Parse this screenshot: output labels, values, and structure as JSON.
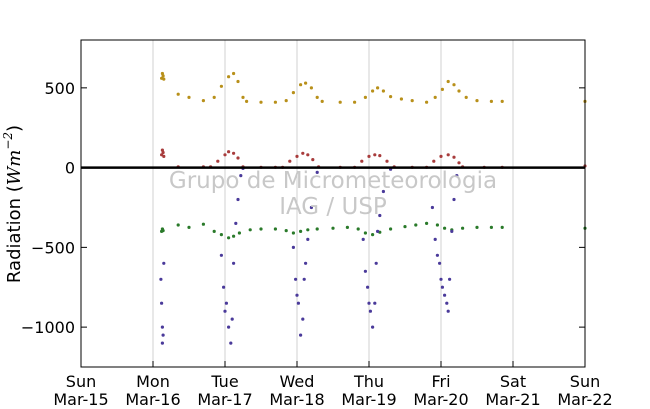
{
  "chart_data": {
    "type": "scatter",
    "title": "",
    "xlabel": "",
    "ylabel": "Radiation (Wm⁻²)",
    "ylabel_text": "Radiation (",
    "ylabel_unit": "Wm",
    "ylabel_exp": "−2",
    "ylabel_close": ")",
    "xlim": [
      0,
      7
    ],
    "ylim": [
      -1250,
      800
    ],
    "yticks": [
      500,
      0,
      -500,
      -1000
    ],
    "ytick_labels": [
      "500",
      "0",
      "−500",
      "−1000"
    ],
    "xtick_labels": [
      {
        "day": "Sun",
        "date": "Mar-15"
      },
      {
        "day": "Mon",
        "date": "Mar-16"
      },
      {
        "day": "Tue",
        "date": "Mar-17"
      },
      {
        "day": "Wed",
        "date": "Mar-18"
      },
      {
        "day": "Thu",
        "date": "Mar-19"
      },
      {
        "day": "Fri",
        "date": "Mar-20"
      },
      {
        "day": "Sat",
        "date": "Mar-21"
      },
      {
        "day": "Sun",
        "date": "Mar-22"
      }
    ],
    "grid": "vertical",
    "watermark": [
      "Grupo de Micrometeorologia",
      "IAG / USP"
    ],
    "series": [
      {
        "color": "#b8901a",
        "points": [
          [
            1.12,
            560
          ],
          [
            1.13,
            590
          ],
          [
            1.14,
            575
          ],
          [
            1.15,
            555
          ],
          [
            1.35,
            460
          ],
          [
            1.5,
            440
          ],
          [
            1.7,
            420
          ],
          [
            1.85,
            440
          ],
          [
            1.95,
            510
          ],
          [
            2.05,
            570
          ],
          [
            2.12,
            590
          ],
          [
            2.18,
            540
          ],
          [
            2.25,
            440
          ],
          [
            2.3,
            415
          ],
          [
            2.5,
            410
          ],
          [
            2.7,
            410
          ],
          [
            2.85,
            420
          ],
          [
            2.95,
            470
          ],
          [
            3.05,
            520
          ],
          [
            3.12,
            530
          ],
          [
            3.2,
            500
          ],
          [
            3.28,
            440
          ],
          [
            3.35,
            415
          ],
          [
            3.6,
            410
          ],
          [
            3.8,
            410
          ],
          [
            3.95,
            440
          ],
          [
            4.05,
            480
          ],
          [
            4.12,
            500
          ],
          [
            4.2,
            480
          ],
          [
            4.3,
            445
          ],
          [
            4.45,
            430
          ],
          [
            4.6,
            420
          ],
          [
            4.8,
            410
          ],
          [
            4.92,
            440
          ],
          [
            5.02,
            490
          ],
          [
            5.1,
            540
          ],
          [
            5.18,
            520
          ],
          [
            5.25,
            480
          ],
          [
            5.35,
            440
          ],
          [
            5.5,
            420
          ],
          [
            5.7,
            415
          ],
          [
            5.85,
            415
          ],
          [
            7.0,
            415
          ]
        ]
      },
      {
        "color": "#a83c3c",
        "points": [
          [
            1.12,
            80
          ],
          [
            1.13,
            110
          ],
          [
            1.14,
            95
          ],
          [
            1.15,
            70
          ],
          [
            1.35,
            5
          ],
          [
            1.7,
            5
          ],
          [
            1.8,
            5
          ],
          [
            1.9,
            40
          ],
          [
            2.0,
            80
          ],
          [
            2.05,
            100
          ],
          [
            2.12,
            90
          ],
          [
            2.18,
            60
          ],
          [
            2.25,
            5
          ],
          [
            2.5,
            2
          ],
          [
            2.7,
            2
          ],
          [
            2.8,
            2
          ],
          [
            2.9,
            40
          ],
          [
            3.0,
            70
          ],
          [
            3.08,
            90
          ],
          [
            3.15,
            80
          ],
          [
            3.22,
            50
          ],
          [
            3.3,
            5
          ],
          [
            3.6,
            2
          ],
          [
            3.8,
            2
          ],
          [
            3.9,
            40
          ],
          [
            4.0,
            70
          ],
          [
            4.08,
            80
          ],
          [
            4.15,
            75
          ],
          [
            4.25,
            40
          ],
          [
            4.35,
            5
          ],
          [
            4.6,
            2
          ],
          [
            4.8,
            2
          ],
          [
            4.9,
            40
          ],
          [
            5.0,
            70
          ],
          [
            5.1,
            80
          ],
          [
            5.18,
            65
          ],
          [
            5.25,
            30
          ],
          [
            5.3,
            5
          ],
          [
            5.6,
            2
          ],
          [
            5.85,
            2
          ],
          [
            7.0,
            10
          ]
        ]
      },
      {
        "color": "#2a7a2a",
        "points": [
          [
            1.12,
            -400
          ],
          [
            1.13,
            -385
          ],
          [
            1.14,
            -395
          ],
          [
            1.35,
            -360
          ],
          [
            1.5,
            -375
          ],
          [
            1.7,
            -355
          ],
          [
            1.85,
            -400
          ],
          [
            1.95,
            -420
          ],
          [
            2.05,
            -440
          ],
          [
            2.12,
            -430
          ],
          [
            2.2,
            -410
          ],
          [
            2.35,
            -390
          ],
          [
            2.5,
            -385
          ],
          [
            2.7,
            -385
          ],
          [
            2.85,
            -395
          ],
          [
            2.95,
            -410
          ],
          [
            3.05,
            -400
          ],
          [
            3.15,
            -390
          ],
          [
            3.28,
            -385
          ],
          [
            3.5,
            -380
          ],
          [
            3.7,
            -375
          ],
          [
            3.85,
            -385
          ],
          [
            3.95,
            -410
          ],
          [
            4.05,
            -420
          ],
          [
            4.15,
            -405
          ],
          [
            4.3,
            -385
          ],
          [
            4.5,
            -370
          ],
          [
            4.65,
            -360
          ],
          [
            4.8,
            -350
          ],
          [
            4.95,
            -360
          ],
          [
            5.05,
            -380
          ],
          [
            5.15,
            -390
          ],
          [
            5.3,
            -380
          ],
          [
            5.5,
            -375
          ],
          [
            5.7,
            -375
          ],
          [
            5.85,
            -375
          ],
          [
            7.0,
            -380
          ]
        ]
      },
      {
        "color": "#4a3a9a",
        "points": [
          [
            1.11,
            -700
          ],
          [
            1.12,
            -850
          ],
          [
            1.13,
            -1000
          ],
          [
            1.14,
            -1050
          ],
          [
            1.13,
            -1100
          ],
          [
            1.15,
            -600
          ],
          [
            1.95,
            -550
          ],
          [
            1.98,
            -750
          ],
          [
            2.0,
            -900
          ],
          [
            2.02,
            -850
          ],
          [
            2.05,
            -1000
          ],
          [
            2.08,
            -1100
          ],
          [
            2.1,
            -950
          ],
          [
            2.12,
            -600
          ],
          [
            2.15,
            -350
          ],
          [
            2.18,
            -200
          ],
          [
            2.22,
            -50
          ],
          [
            2.25,
            -5
          ],
          [
            2.95,
            -500
          ],
          [
            2.98,
            -700
          ],
          [
            3.0,
            -800
          ],
          [
            3.02,
            -850
          ],
          [
            3.05,
            -1050
          ],
          [
            3.08,
            -950
          ],
          [
            3.1,
            -700
          ],
          [
            3.12,
            -600
          ],
          [
            3.15,
            -450
          ],
          [
            3.2,
            -250
          ],
          [
            3.28,
            -30
          ],
          [
            3.92,
            -450
          ],
          [
            3.95,
            -650
          ],
          [
            3.98,
            -750
          ],
          [
            4.0,
            -850
          ],
          [
            4.02,
            -900
          ],
          [
            4.05,
            -1000
          ],
          [
            4.08,
            -850
          ],
          [
            4.1,
            -600
          ],
          [
            4.12,
            -400
          ],
          [
            4.15,
            -300
          ],
          [
            4.2,
            -150
          ],
          [
            4.3,
            -10
          ],
          [
            4.88,
            -250
          ],
          [
            4.92,
            -450
          ],
          [
            4.95,
            -550
          ],
          [
            4.98,
            -600
          ],
          [
            5.0,
            -700
          ],
          [
            5.02,
            -750
          ],
          [
            5.05,
            -800
          ],
          [
            5.08,
            -850
          ],
          [
            5.1,
            -900
          ],
          [
            5.12,
            -700
          ],
          [
            5.15,
            -400
          ],
          [
            5.18,
            -200
          ],
          [
            5.22,
            -50
          ]
        ]
      }
    ]
  }
}
